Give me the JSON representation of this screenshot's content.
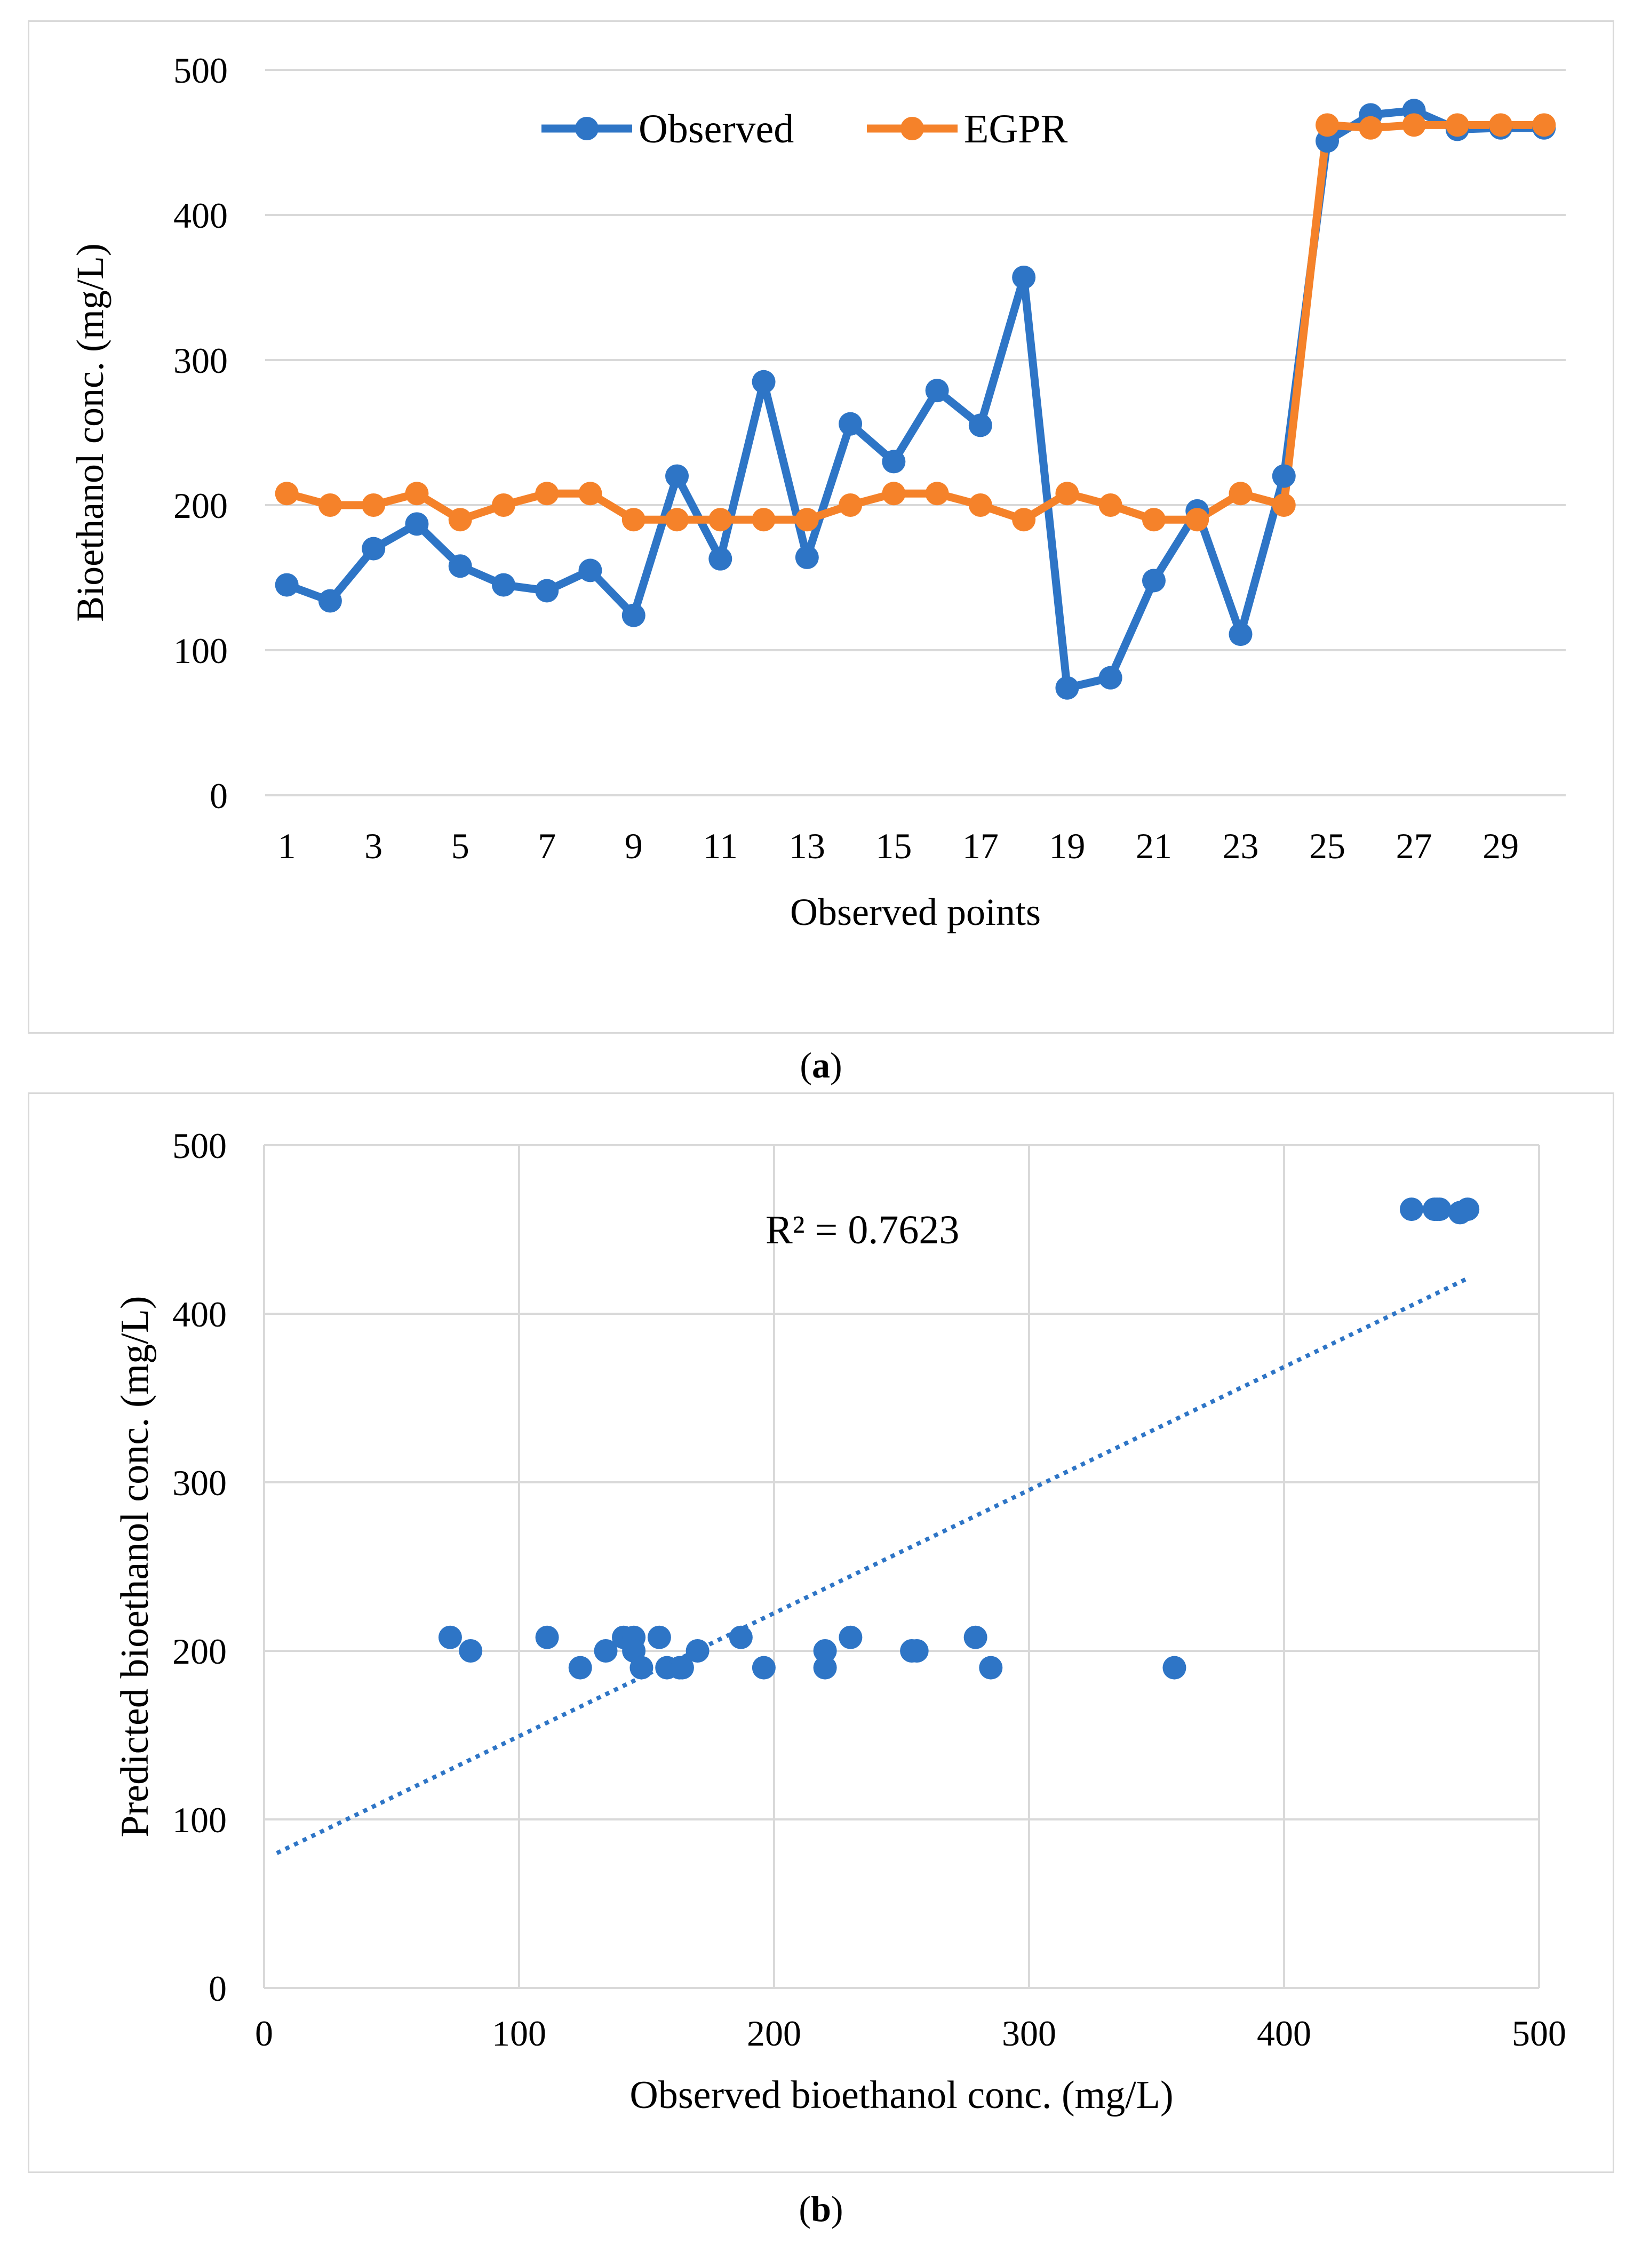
{
  "colors": {
    "observed": "#2e75c6",
    "egpr": "#f5822a",
    "grid": "#d9d9d9"
  },
  "panel_a_caption": {
    "prefix": "(",
    "letter": "a",
    "suffix": ")"
  },
  "panel_b_caption": {
    "prefix": "(",
    "letter": "b",
    "suffix": ")"
  },
  "chart_data": [
    {
      "type": "line",
      "title": "",
      "xlabel": "Observed points",
      "ylabel": "Bioethanol conc. (mg/L)",
      "ylim": [
        0,
        500
      ],
      "yticks": [
        0,
        100,
        200,
        300,
        400,
        500
      ],
      "x": [
        1,
        2,
        3,
        4,
        5,
        6,
        7,
        8,
        9,
        10,
        11,
        12,
        13,
        14,
        15,
        16,
        17,
        18,
        19,
        20,
        21,
        22,
        23,
        24,
        25,
        26,
        27,
        28,
        29,
        30
      ],
      "xtick_labels": [
        "1",
        "3",
        "5",
        "7",
        "9",
        "11",
        "13",
        "15",
        "17",
        "19",
        "21",
        "23",
        "25",
        "27",
        "29"
      ],
      "legend_position": "top-center",
      "series": [
        {
          "name": "Observed",
          "values": [
            145,
            134,
            170,
            187,
            158,
            145,
            141,
            155,
            124,
            220,
            163,
            285,
            164,
            256,
            230,
            279,
            255,
            357,
            74,
            81,
            148,
            196,
            111,
            220,
            451,
            469,
            472,
            459,
            460,
            460
          ]
        },
        {
          "name": "EGPR",
          "values": [
            208,
            200,
            200,
            208,
            190,
            200,
            208,
            208,
            190,
            190,
            190,
            190,
            190,
            200,
            208,
            208,
            200,
            190,
            208,
            200,
            190,
            190,
            208,
            200,
            462,
            460,
            462,
            462,
            462,
            462
          ]
        }
      ]
    },
    {
      "type": "scatter",
      "title": "",
      "xlabel": "Observed bioethanol conc. (mg/L)",
      "ylabel": "Predicted bioethanol conc. (mg/L)",
      "xlim": [
        0,
        500
      ],
      "ylim": [
        0,
        500
      ],
      "xticks": [
        0,
        100,
        200,
        300,
        400,
        500
      ],
      "yticks": [
        0,
        100,
        200,
        300,
        400,
        500
      ],
      "annotation": "R² = 0.7623",
      "trendline": {
        "style": "dotted",
        "x": [
          5,
          472
        ],
        "y": [
          80,
          421
        ]
      },
      "points": [
        [
          73,
          208
        ],
        [
          81,
          200
        ],
        [
          111,
          208
        ],
        [
          124,
          190
        ],
        [
          134,
          200
        ],
        [
          141,
          208
        ],
        [
          145,
          208
        ],
        [
          145,
          200
        ],
        [
          148,
          190
        ],
        [
          155,
          208
        ],
        [
          158,
          190
        ],
        [
          163,
          190
        ],
        [
          164,
          190
        ],
        [
          170,
          200
        ],
        [
          187,
          208
        ],
        [
          196,
          190
        ],
        [
          220,
          200
        ],
        [
          220,
          190
        ],
        [
          230,
          208
        ],
        [
          254,
          200
        ],
        [
          256,
          200
        ],
        [
          279,
          208
        ],
        [
          285,
          190
        ],
        [
          357,
          190
        ],
        [
          450,
          462
        ],
        [
          459,
          462
        ],
        [
          460,
          462
        ],
        [
          461,
          462
        ],
        [
          469,
          460
        ],
        [
          472,
          462
        ]
      ]
    }
  ]
}
